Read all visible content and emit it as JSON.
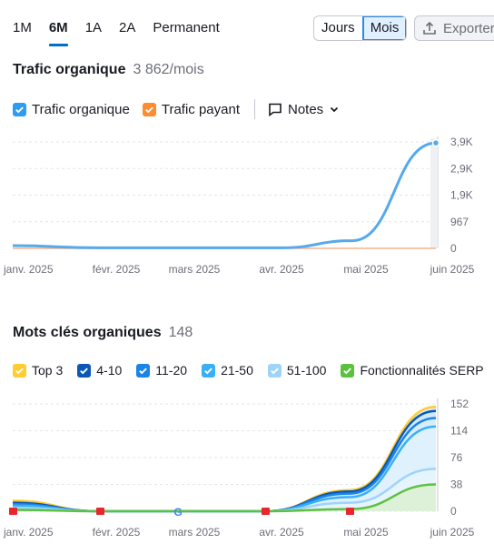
{
  "range_tabs": [
    {
      "label": "1M",
      "active": false
    },
    {
      "label": "6M",
      "active": true
    },
    {
      "label": "1A",
      "active": false
    },
    {
      "label": "2A",
      "active": false
    },
    {
      "label": "Permanent",
      "active": false
    }
  ],
  "granularity": {
    "day_label": "Jours",
    "month_label": "Mois",
    "selected": "Mois"
  },
  "export_label": "Exporter",
  "traffic": {
    "title": "Trafic organique",
    "value": "3 862/mois",
    "legend": {
      "organic_label": "Trafic organique",
      "organic_color": "#2d9cf2",
      "paid_label": "Trafic payant",
      "paid_color": "#ff8c2f",
      "notes_label": "Notes"
    }
  },
  "keywords": {
    "title": "Mots clés organiques",
    "value": "148",
    "legend": [
      {
        "label": "Top 3",
        "color": "#ffcc33"
      },
      {
        "label": "4-10",
        "color": "#0a58b4"
      },
      {
        "label": "11-20",
        "color": "#1a84e8"
      },
      {
        "label": "21-50",
        "color": "#39b0f5"
      },
      {
        "label": "51-100",
        "color": "#9fd3f9"
      },
      {
        "label": "Fonctionnalités SERP",
        "color": "#5cc13f"
      }
    ]
  },
  "chart_data": [
    {
      "type": "line",
      "title": "Trafic organique",
      "x": [
        "janv. 2025",
        "févr. 2025",
        "mars 2025",
        "avr. 2025",
        "mai 2025",
        "juin 2025"
      ],
      "y_ticks": [
        "3,9K",
        "2,9K",
        "1,9K",
        "967",
        "0"
      ],
      "ylim": [
        0,
        3900
      ],
      "series": [
        {
          "name": "Trafic organique",
          "values": [
            100,
            20,
            20,
            20,
            280,
            3862
          ]
        },
        {
          "name": "Trafic payant",
          "values": [
            0,
            0,
            0,
            0,
            0,
            0
          ]
        }
      ]
    },
    {
      "type": "area",
      "title": "Mots clés organiques",
      "x": [
        "janv. 2025",
        "févr. 2025",
        "mars 2025",
        "avr. 2025",
        "mai 2025",
        "juin 2025"
      ],
      "y_ticks": [
        "152",
        "114",
        "76",
        "38",
        "0"
      ],
      "ylim": [
        0,
        152
      ],
      "series": [
        {
          "name": "Top 3",
          "values": [
            15,
            0,
            0,
            0,
            30,
            148
          ]
        },
        {
          "name": "4-10",
          "values": [
            12,
            0,
            0,
            0,
            28,
            142
          ]
        },
        {
          "name": "11-20",
          "values": [
            10,
            0,
            0,
            0,
            25,
            132
          ]
        },
        {
          "name": "21-50",
          "values": [
            8,
            0,
            0,
            0,
            20,
            120
          ]
        },
        {
          "name": "51-100",
          "values": [
            5,
            0,
            0,
            0,
            12,
            60
          ]
        },
        {
          "name": "Fonctionnalités SERP",
          "values": [
            2,
            0,
            0,
            0,
            3,
            38
          ]
        }
      ]
    }
  ]
}
